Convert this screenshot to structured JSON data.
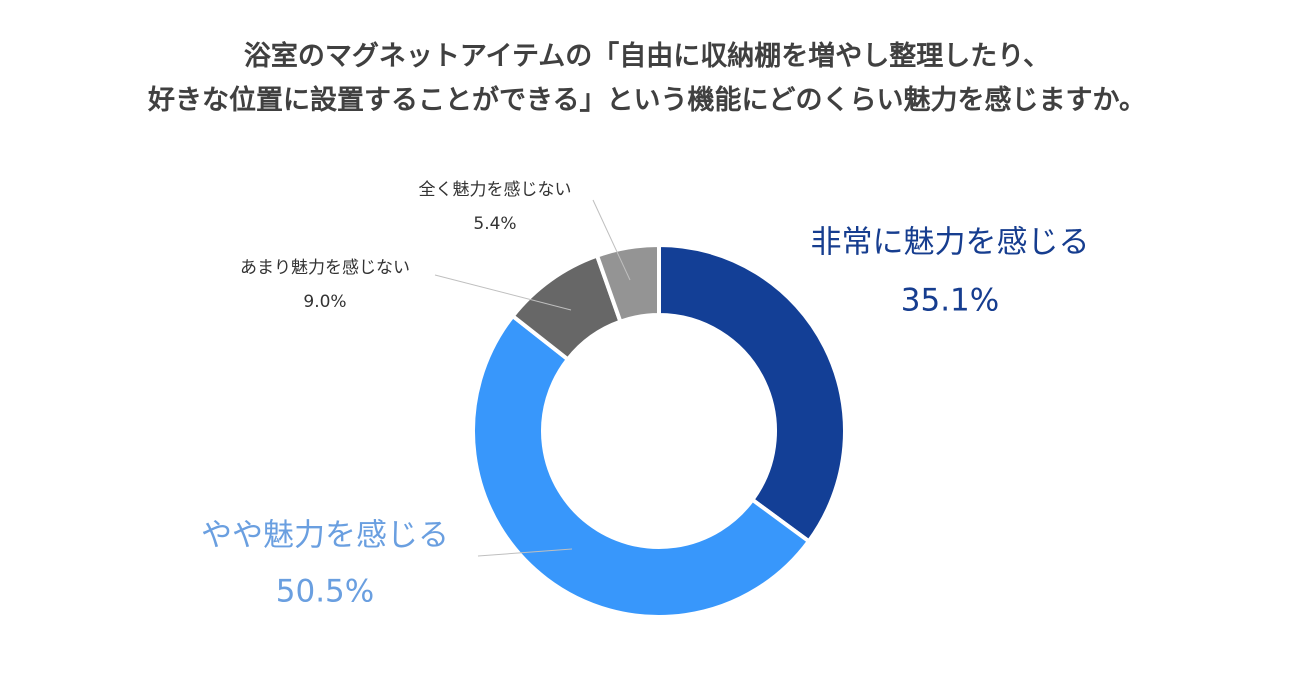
{
  "chart_data": {
    "type": "pie",
    "donut": true,
    "title_lines": [
      "浴室のマグネットアイテムの「自由に収納棚を増やし整理したり、",
      "好きな位置に設置することができる」という機能にどのくらい魅力を感じますか。"
    ],
    "slices": [
      {
        "label": "非常に魅力を感じる",
        "value": 35.1,
        "display": "35.1%",
        "color": "#133f96"
      },
      {
        "label": "やや魅力を感じる",
        "value": 50.5,
        "display": "50.5%",
        "color": "#3897fb"
      },
      {
        "label": "あまり魅力を感じない",
        "value": 9.0,
        "display": "9.0%",
        "color": "#676767"
      },
      {
        "label": "全く魅力を感じない",
        "value": 5.4,
        "display": "5.4%",
        "color": "#949494"
      }
    ],
    "label_colors": [
      "#163d8f",
      "#6a9fe0",
      "#333333",
      "#333333"
    ]
  }
}
